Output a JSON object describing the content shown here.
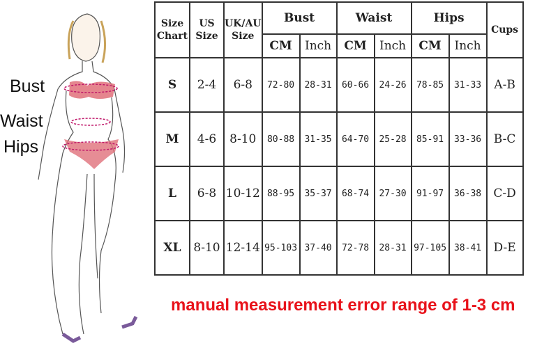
{
  "labels": {
    "bust": "Bust",
    "waist": "Waist",
    "hips": "Hips"
  },
  "table": {
    "headers": {
      "size_chart": "Size Chart",
      "us_size": "US Size",
      "uk_au_size": "UK/AU Size",
      "bust": "Bust",
      "waist": "Waist",
      "hips": "Hips",
      "cups": "Cups",
      "cm": "CM",
      "inch": "Inch"
    },
    "rows": [
      {
        "size": "S",
        "us": "2-4",
        "uk": "6-8",
        "bust_cm": "72-80",
        "bust_in": "28-31",
        "waist_cm": "60-66",
        "waist_in": "24-26",
        "hips_cm": "78-85",
        "hips_in": "31-33",
        "cups": "A-B"
      },
      {
        "size": "M",
        "us": "4-6",
        "uk": "8-10",
        "bust_cm": "80-88",
        "bust_in": "31-35",
        "waist_cm": "64-70",
        "waist_in": "25-28",
        "hips_cm": "85-91",
        "hips_in": "33-36",
        "cups": "B-C"
      },
      {
        "size": "L",
        "us": "6-8",
        "uk": "10-12",
        "bust_cm": "88-95",
        "bust_in": "35-37",
        "waist_cm": "68-74",
        "waist_in": "27-30",
        "hips_cm": "91-97",
        "hips_in": "36-38",
        "cups": "C-D"
      },
      {
        "size": "XL",
        "us": "8-10",
        "uk": "12-14",
        "bust_cm": "95-103",
        "bust_in": "37-40",
        "waist_cm": "72-78",
        "waist_in": "28-31",
        "hips_cm": "97-105",
        "hips_in": "38-41",
        "cups": "D-E"
      }
    ]
  },
  "note": "manual measurement error range of 1-3 cm",
  "colors": {
    "note": "#e8121a",
    "lingerie": "#e0707a",
    "measure_line": "#c0186a"
  }
}
